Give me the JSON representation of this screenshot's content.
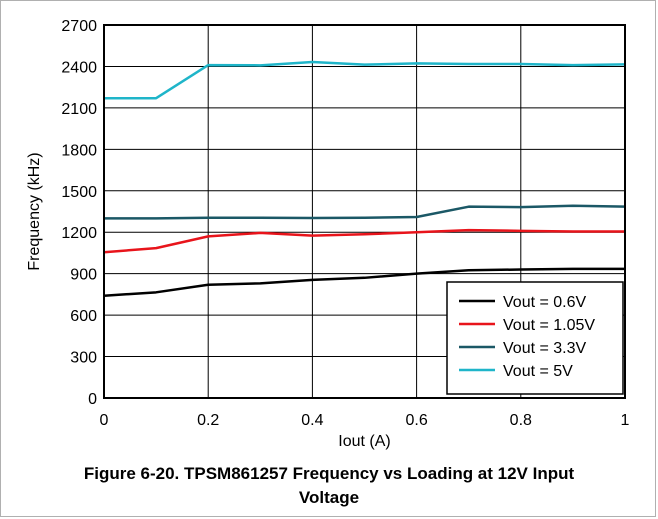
{
  "caption": {
    "line1": "Figure 6-20. TPSM861257 Frequency vs Loading at 12V Input",
    "line2": "Voltage"
  },
  "chart_data": {
    "type": "line",
    "title": "",
    "xlabel": "Iout (A)",
    "ylabel": "Frequency (kHz)",
    "xlim": [
      0,
      1
    ],
    "ylim": [
      0,
      2700
    ],
    "xticks": [
      0,
      0.2,
      0.4,
      0.6,
      0.8,
      1
    ],
    "xtick_labels": [
      "0",
      "0.2",
      "0.4",
      "0.6",
      "0.8",
      "1"
    ],
    "yticks": [
      0,
      300,
      600,
      900,
      1200,
      1500,
      1800,
      2100,
      2400,
      2700
    ],
    "ytick_labels": [
      "0",
      "300",
      "600",
      "900",
      "1200",
      "1500",
      "1800",
      "2100",
      "2400",
      "2700"
    ],
    "grid": true,
    "legend_position": "bottom-right",
    "x": [
      0,
      0.1,
      0.2,
      0.3,
      0.4,
      0.5,
      0.6,
      0.7,
      0.8,
      0.9,
      1
    ],
    "series": [
      {
        "name": "Vout = 0.6V",
        "color": "#000000",
        "values": [
          740,
          765,
          820,
          830,
          855,
          870,
          900,
          925,
          930,
          935,
          935
        ]
      },
      {
        "name": "Vout = 1.05V",
        "color": "#e8141b",
        "values": [
          1055,
          1085,
          1170,
          1195,
          1175,
          1185,
          1200,
          1215,
          1210,
          1205,
          1205
        ]
      },
      {
        "name": "Vout = 3.3V",
        "color": "#1b5866",
        "values": [
          1300,
          1300,
          1305,
          1305,
          1303,
          1305,
          1310,
          1385,
          1382,
          1392,
          1385
        ]
      },
      {
        "name": "Vout = 5V",
        "color": "#1fb5c9",
        "values": [
          2170,
          2170,
          2410,
          2408,
          2432,
          2413,
          2422,
          2418,
          2418,
          2410,
          2415
        ]
      }
    ]
  }
}
